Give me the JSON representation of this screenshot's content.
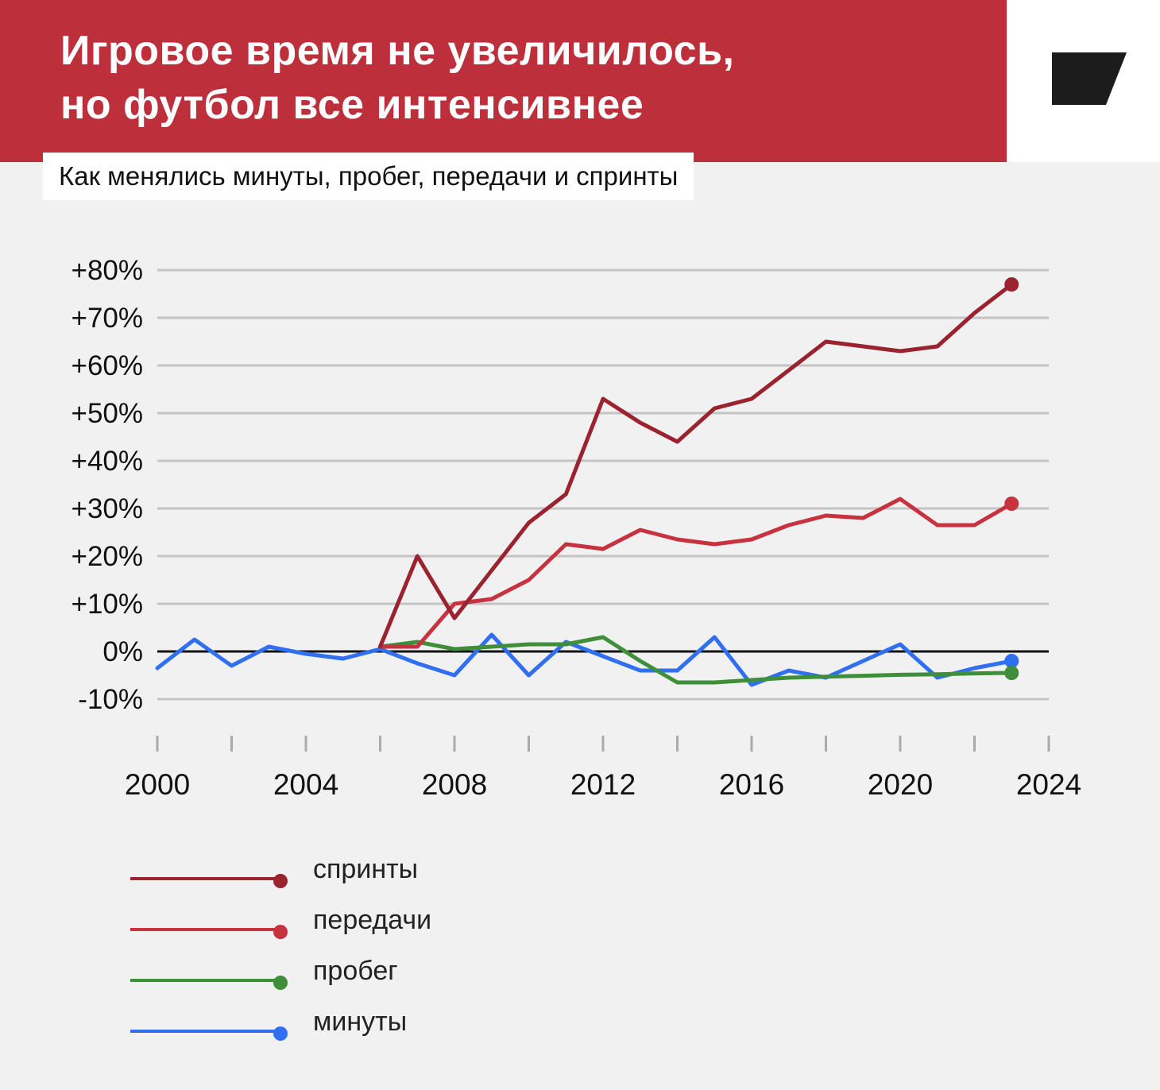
{
  "header": {
    "title_lines": [
      "Игровое время не увеличилось,",
      "но футбол все интенсивнее"
    ],
    "subtitle": "Как менялись минуты, пробег, передачи и спринты",
    "logo": "brand-logo-icon"
  },
  "colors": {
    "header_bg": "#bc2f3b",
    "page_bg": "#f1f1f1",
    "sprints": "#9b2330",
    "passes": "#c8323f",
    "distance": "#3f8f3a",
    "minutes": "#2f6ff0"
  },
  "chart_data": {
    "type": "line",
    "x_ticks": [
      2000,
      2004,
      2008,
      2012,
      2016,
      2020,
      2024
    ],
    "xlim": [
      2000,
      2024
    ],
    "y_ticks": [
      80,
      70,
      60,
      50,
      40,
      30,
      20,
      10,
      0,
      -10
    ],
    "y_tick_labels": [
      "+80%",
      "+70%",
      "+60%",
      "+50%",
      "+40%",
      "+30%",
      "+20%",
      "+10%",
      "0%",
      "-10%"
    ],
    "ylim": [
      -10,
      80
    ],
    "grid": true,
    "legend_position": "bottom-left",
    "series": [
      {
        "name": "спринты",
        "color": "#9b2330",
        "x": [
          2006,
          2007,
          2008,
          2009,
          2010,
          2011,
          2012,
          2013,
          2014,
          2015,
          2016,
          2017,
          2018,
          2019,
          2020,
          2021,
          2022,
          2023
        ],
        "y": [
          1,
          20,
          7,
          17,
          27,
          33,
          53,
          48,
          44,
          51,
          53,
          59,
          65,
          64,
          63,
          64,
          71,
          77
        ]
      },
      {
        "name": "передачи",
        "color": "#c8323f",
        "x": [
          2006,
          2007,
          2008,
          2009,
          2010,
          2011,
          2012,
          2013,
          2014,
          2015,
          2016,
          2017,
          2018,
          2019,
          2020,
          2021,
          2022,
          2023
        ],
        "y": [
          1,
          1,
          10,
          11,
          15,
          22.5,
          21.5,
          25.5,
          23.5,
          22.5,
          23.5,
          26.5,
          28.5,
          28,
          32,
          26.5,
          26.5,
          31
        ]
      },
      {
        "name": "пробег",
        "color": "#3f8f3a",
        "x": [
          2006,
          2007,
          2008,
          2009,
          2010,
          2011,
          2012,
          2013,
          2014,
          2015,
          2016,
          2017,
          2018,
          2019,
          2020,
          2021,
          2022,
          2023
        ],
        "y": [
          1,
          2,
          0.5,
          1,
          1.5,
          1.5,
          3,
          -2,
          -6.5,
          -6.5,
          -6,
          -5.5,
          -5.3,
          -5.1,
          -4.9,
          -4.8,
          -4.6,
          -4.5
        ]
      },
      {
        "name": "минуты",
        "color": "#2f6ff0",
        "x": [
          2000,
          2001,
          2002,
          2003,
          2004,
          2005,
          2006,
          2007,
          2008,
          2009,
          2010,
          2011,
          2012,
          2013,
          2014,
          2015,
          2016,
          2017,
          2018,
          2019,
          2020,
          2021,
          2022,
          2023
        ],
        "y": [
          -3.5,
          2.5,
          -3,
          1,
          -0.5,
          -1.5,
          0.5,
          -2.5,
          -5,
          3.5,
          -5,
          2,
          -1,
          -4,
          -4,
          3,
          -7,
          -4,
          -5.5,
          -2,
          1.5,
          -5.5,
          -3.5,
          -2
        ]
      }
    ]
  }
}
